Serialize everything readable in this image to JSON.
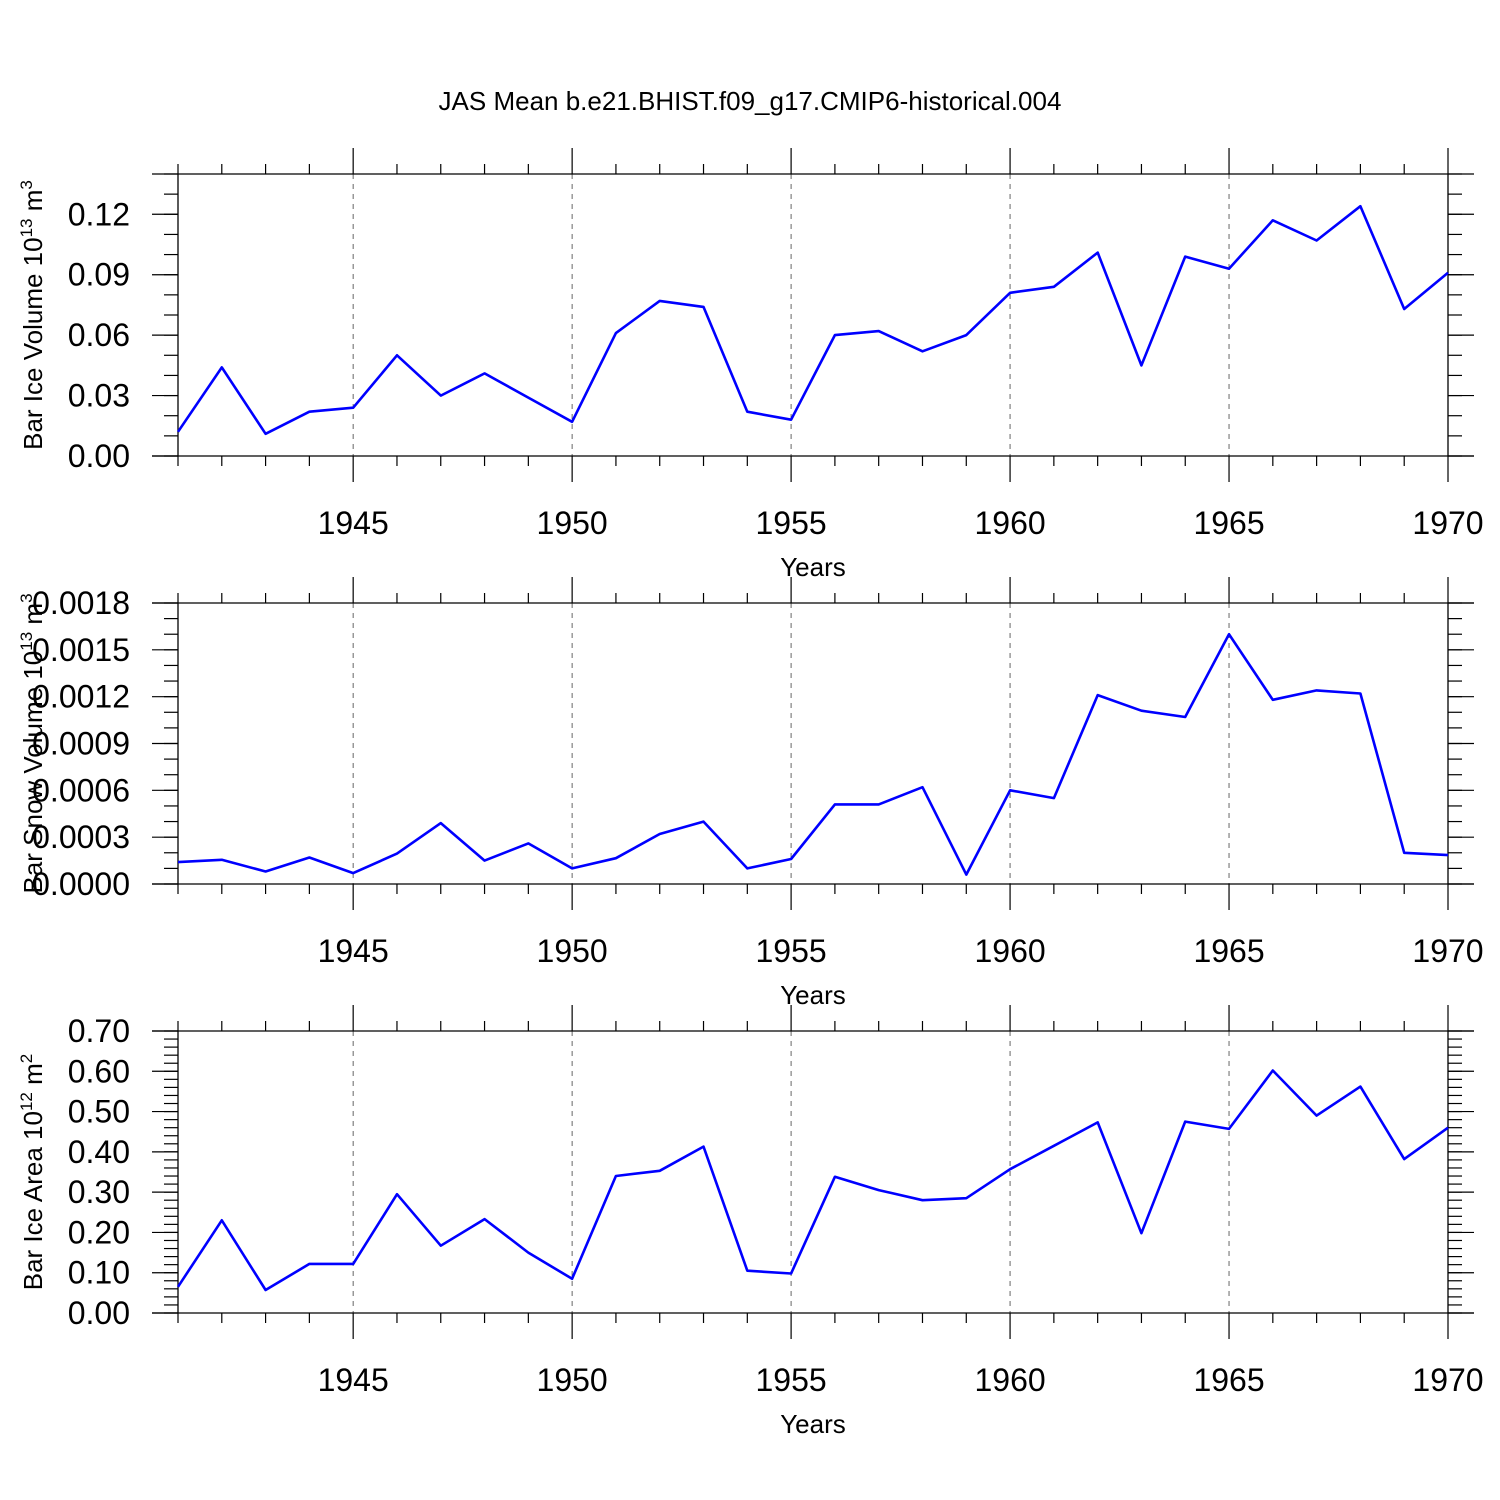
{
  "title": "JAS Mean b.e21.BHIST.f09_g17.CMIP6-historical.004",
  "colors": {
    "series": "#0000ff",
    "axis": "#000000",
    "grid": "#666666"
  },
  "chart_data": [
    {
      "type": "line",
      "name": "ice-volume",
      "ylabel": "Bar Ice Volume 10",
      "ylabel_exp": "13",
      "ylabel_unit": " m",
      "ylabel_unit_exp": "3",
      "xlabel": "Years",
      "xlim": [
        1941,
        1970
      ],
      "ylim": [
        0,
        0.14
      ],
      "yticks": [
        0.0,
        0.03,
        0.06,
        0.09,
        0.12
      ],
      "ytick_labels": [
        "0.00",
        "0.03",
        "0.06",
        "0.09",
        "0.12"
      ],
      "yminor_step": 0.01,
      "xticks": [
        1945,
        1950,
        1955,
        1960,
        1965,
        1970
      ],
      "xtick_labels": [
        "1945",
        "1950",
        "1955",
        "1960",
        "1965",
        "1970"
      ],
      "x": [
        1941,
        1942,
        1943,
        1944,
        1945,
        1946,
        1947,
        1948,
        1949,
        1950,
        1951,
        1952,
        1953,
        1954,
        1955,
        1956,
        1957,
        1958,
        1959,
        1960,
        1961,
        1962,
        1963,
        1964,
        1965,
        1966,
        1967,
        1968,
        1969,
        1970
      ],
      "values": [
        0.012,
        0.044,
        0.011,
        0.022,
        0.024,
        0.05,
        0.03,
        0.041,
        0.029,
        0.017,
        0.061,
        0.077,
        0.074,
        0.022,
        0.018,
        0.06,
        0.062,
        0.052,
        0.06,
        0.081,
        0.084,
        0.101,
        0.045,
        0.099,
        0.093,
        0.117,
        0.107,
        0.124,
        0.073,
        0.091
      ]
    },
    {
      "type": "line",
      "name": "snow-volume",
      "ylabel": "Bar Snow Volume 10",
      "ylabel_exp": "13",
      "ylabel_unit": " m",
      "ylabel_unit_exp": "3",
      "xlabel": "Years",
      "xlim": [
        1941,
        1970
      ],
      "ylim": [
        0,
        0.0018
      ],
      "yticks": [
        0.0,
        0.0003,
        0.0006,
        0.0009,
        0.0012,
        0.0015,
        0.0018
      ],
      "ytick_labels": [
        "0.0000",
        "0.0003",
        "0.0006",
        "0.0009",
        "0.0012",
        "0.0015",
        "0.0018"
      ],
      "yminor_step": 0.0001,
      "xticks": [
        1945,
        1950,
        1955,
        1960,
        1965,
        1970
      ],
      "xtick_labels": [
        "1945",
        "1950",
        "1955",
        "1960",
        "1965",
        "1970"
      ],
      "x": [
        1941,
        1942,
        1943,
        1944,
        1945,
        1946,
        1947,
        1948,
        1949,
        1950,
        1951,
        1952,
        1953,
        1954,
        1955,
        1956,
        1957,
        1958,
        1959,
        1960,
        1961,
        1962,
        1963,
        1964,
        1965,
        1966,
        1967,
        1968,
        1969,
        1970
      ],
      "values": [
        0.00014,
        0.000155,
        8e-05,
        0.00017,
        7e-05,
        0.000195,
        0.00039,
        0.00015,
        0.00026,
        0.0001,
        0.000165,
        0.00032,
        0.0004,
        0.0001,
        0.00016,
        0.00051,
        0.00051,
        0.00062,
        6e-05,
        0.0006,
        0.00055,
        0.00121,
        0.00111,
        0.00107,
        0.0016,
        0.00118,
        0.00124,
        0.00122,
        0.0002,
        0.000185
      ]
    },
    {
      "type": "line",
      "name": "ice-area",
      "ylabel": "Bar Ice Area 10",
      "ylabel_exp": "12",
      "ylabel_unit": " m",
      "ylabel_unit_exp": "2",
      "xlabel": "Years",
      "xlim": [
        1941,
        1970
      ],
      "ylim": [
        0,
        0.7
      ],
      "yticks": [
        0.0,
        0.1,
        0.2,
        0.3,
        0.4,
        0.5,
        0.6,
        0.7
      ],
      "ytick_labels": [
        "0.00",
        "0.10",
        "0.20",
        "0.30",
        "0.40",
        "0.50",
        "0.60",
        "0.70"
      ],
      "yminor_step": 0.02,
      "xticks": [
        1945,
        1950,
        1955,
        1960,
        1965,
        1970
      ],
      "xtick_labels": [
        "1945",
        "1950",
        "1955",
        "1960",
        "1965",
        "1970"
      ],
      "x": [
        1941,
        1942,
        1943,
        1944,
        1945,
        1946,
        1947,
        1948,
        1949,
        1950,
        1951,
        1952,
        1953,
        1954,
        1955,
        1956,
        1957,
        1958,
        1959,
        1960,
        1961,
        1962,
        1963,
        1964,
        1965,
        1966,
        1967,
        1968,
        1969,
        1970
      ],
      "values": [
        0.065,
        0.23,
        0.057,
        0.122,
        0.122,
        0.295,
        0.167,
        0.233,
        0.15,
        0.085,
        0.34,
        0.353,
        0.413,
        0.105,
        0.098,
        0.338,
        0.305,
        0.28,
        0.285,
        0.357,
        0.415,
        0.473,
        0.198,
        0.475,
        0.457,
        0.602,
        0.49,
        0.562,
        0.382,
        0.46
      ]
    }
  ]
}
